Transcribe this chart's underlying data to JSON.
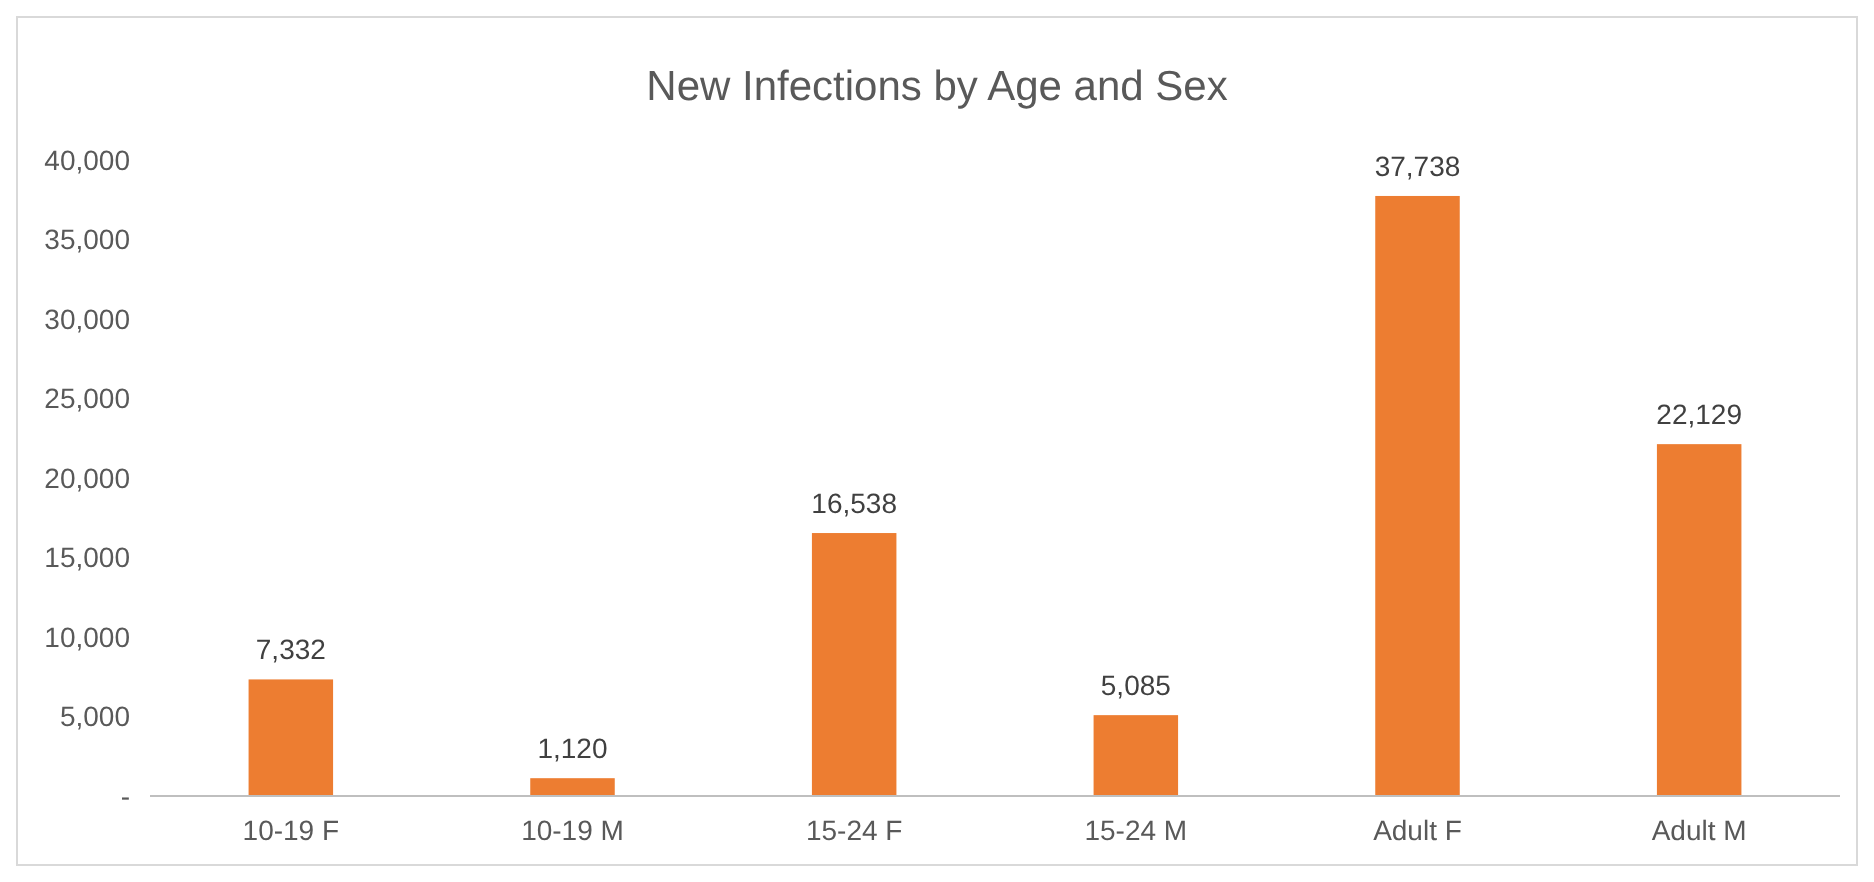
{
  "chart_data": {
    "type": "bar",
    "title": "New Infections by Age and Sex",
    "categories": [
      "10-19 F",
      "10-19 M",
      "15-24 F",
      "15-24 M",
      "Adult F",
      "Adult M"
    ],
    "values": [
      7332,
      1120,
      16538,
      5085,
      37738,
      22129
    ],
    "value_labels": [
      "7,332",
      "1,120",
      "16,538",
      "5,085",
      "37,738",
      "22,129"
    ],
    "color": "#ed7d31",
    "ylim": [
      0,
      40000
    ],
    "yticks": [
      {
        "value": 0,
        "label": "-"
      },
      {
        "value": 5000,
        "label": "5,000"
      },
      {
        "value": 10000,
        "label": "10,000"
      },
      {
        "value": 15000,
        "label": "15,000"
      },
      {
        "value": 20000,
        "label": "20,000"
      },
      {
        "value": 25000,
        "label": "25,000"
      },
      {
        "value": 30000,
        "label": "30,000"
      },
      {
        "value": 35000,
        "label": "35,000"
      },
      {
        "value": 40000,
        "label": "40,000"
      }
    ],
    "grid": false
  }
}
